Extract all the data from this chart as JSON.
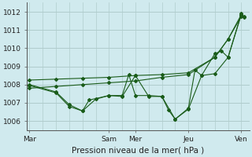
{
  "xlabel": "Pression niveau de la mer( hPa )",
  "bg_color": "#d0eaee",
  "grid_color": "#b0cccc",
  "line_color": "#1a5c1a",
  "ylim": [
    1005.5,
    1012.5
  ],
  "yticks": [
    1006,
    1007,
    1008,
    1009,
    1010,
    1011,
    1012
  ],
  "x_tick_labels": [
    "Mar",
    "Sam",
    "Mer",
    "Jeu",
    "Ven"
  ],
  "x_tick_positions": [
    0.0,
    3.0,
    4.0,
    6.0,
    8.0
  ],
  "xlim": [
    -0.1,
    8.3
  ],
  "series": [
    {
      "x": [
        0.0,
        1.0,
        2.0,
        3.0,
        4.0,
        5.0,
        6.0,
        7.0,
        7.5,
        8.0
      ],
      "y": [
        1007.8,
        1007.9,
        1008.0,
        1008.1,
        1008.2,
        1008.4,
        1008.55,
        1009.5,
        1010.5,
        1011.75
      ]
    },
    {
      "x": [
        0.0,
        1.0,
        2.0,
        3.0,
        4.0,
        5.0,
        6.0,
        7.0,
        7.5,
        8.0
      ],
      "y": [
        1008.25,
        1008.3,
        1008.35,
        1008.4,
        1008.5,
        1008.55,
        1008.65,
        1009.5,
        1010.5,
        1011.85
      ]
    },
    {
      "x": [
        0.0,
        1.0,
        1.5,
        2.0,
        2.5,
        3.0,
        3.5,
        3.75,
        4.0,
        4.5,
        5.0,
        5.5,
        6.0,
        6.25,
        6.5,
        7.0,
        7.25,
        7.5,
        8.0,
        8.1
      ],
      "y": [
        1007.95,
        1007.55,
        1006.8,
        1006.55,
        1007.2,
        1007.4,
        1007.4,
        1008.55,
        1007.4,
        1007.4,
        1007.35,
        1006.1,
        1006.7,
        1008.8,
        1008.5,
        1009.7,
        1009.85,
        1009.5,
        1011.9,
        1011.75
      ]
    },
    {
      "x": [
        0.0,
        1.0,
        1.5,
        2.0,
        2.25,
        3.0,
        3.5,
        4.0,
        4.5,
        5.0,
        5.25,
        5.5,
        6.0,
        6.5,
        7.0,
        7.5,
        8.0,
        8.1
      ],
      "y": [
        1008.0,
        1007.6,
        1006.9,
        1006.55,
        1007.15,
        1007.4,
        1007.35,
        1008.5,
        1007.35,
        1007.35,
        1006.6,
        1006.1,
        1006.65,
        1008.5,
        1008.6,
        1009.5,
        1011.85,
        1011.7
      ]
    }
  ]
}
